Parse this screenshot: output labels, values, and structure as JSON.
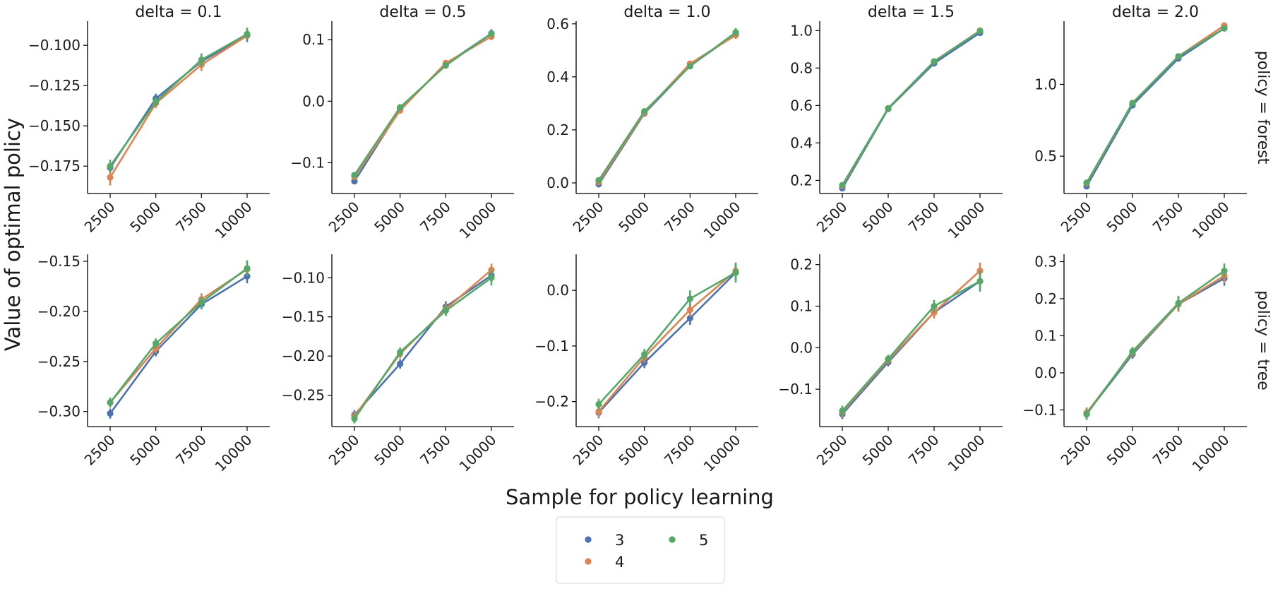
{
  "chart_data": {
    "type": "line",
    "figure": "facet grid of point plots with error bars",
    "xlabel": "Sample for policy learning",
    "ylabel": "Value of optimal policy",
    "x": [
      2500,
      5000,
      7500,
      10000
    ],
    "x_tick_labels": [
      "2500",
      "5000",
      "7500",
      "10000"
    ],
    "col_titles": [
      "delta = 0.1",
      "delta = 0.5",
      "delta = 1.0",
      "delta = 1.5",
      "delta = 2.0"
    ],
    "row_titles": [
      "policy = forest",
      "policy = tree"
    ],
    "legend": {
      "placement": "bottom-center",
      "columns": 2,
      "entries": [
        {
          "label": "3",
          "color": "#4c72b0"
        },
        {
          "label": "4",
          "color": "#dd8452"
        },
        {
          "label": "5",
          "color": "#55a868"
        }
      ]
    },
    "panels": [
      {
        "row": 0,
        "col": 0,
        "ylim": [
          -0.192,
          -0.085
        ],
        "yticks": [
          -0.175,
          -0.15,
          -0.125,
          -0.1
        ],
        "ytick_labels": [
          "−0.175",
          "−0.150",
          "−0.125",
          "−0.100"
        ],
        "series": [
          {
            "name": "3",
            "values": [
              -0.176,
              -0.133,
              -0.11,
              -0.094
            ],
            "err": [
              0.003,
              0.003,
              0.003,
              0.004
            ]
          },
          {
            "name": "4",
            "values": [
              -0.182,
              -0.136,
              -0.112,
              -0.094
            ],
            "err": [
              0.005,
              0.003,
              0.004,
              0.003
            ]
          },
          {
            "name": "5",
            "values": [
              -0.175,
              -0.135,
              -0.109,
              -0.093
            ],
            "err": [
              0.004,
              0.003,
              0.004,
              0.004
            ]
          }
        ]
      },
      {
        "row": 0,
        "col": 1,
        "ylim": [
          -0.15,
          0.13
        ],
        "yticks": [
          -0.1,
          0.0,
          0.1
        ],
        "ytick_labels": [
          "−0.1",
          "0.0",
          "0.1"
        ],
        "series": [
          {
            "name": "3",
            "values": [
              -0.13,
              -0.013,
              0.06,
              0.11
            ],
            "err": [
              0.005,
              0.004,
              0.005,
              0.007
            ]
          },
          {
            "name": "4",
            "values": [
              -0.123,
              -0.015,
              0.062,
              0.105
            ],
            "err": [
              0.005,
              0.004,
              0.005,
              0.006
            ]
          },
          {
            "name": "5",
            "values": [
              -0.12,
              -0.01,
              0.058,
              0.11
            ],
            "err": [
              0.005,
              0.004,
              0.005,
              0.006
            ]
          }
        ]
      },
      {
        "row": 0,
        "col": 2,
        "ylim": [
          -0.04,
          0.61
        ],
        "yticks": [
          0.0,
          0.2,
          0.4,
          0.6
        ],
        "ytick_labels": [
          "0.0",
          "0.2",
          "0.4",
          "0.6"
        ],
        "series": [
          {
            "name": "3",
            "values": [
              -0.005,
              0.262,
              0.442,
              0.562
            ],
            "err": [
              0.012,
              0.01,
              0.01,
              0.015
            ]
          },
          {
            "name": "4",
            "values": [
              0.003,
              0.265,
              0.45,
              0.557
            ],
            "err": [
              0.012,
              0.01,
              0.01,
              0.014
            ]
          },
          {
            "name": "5",
            "values": [
              0.01,
              0.27,
              0.44,
              0.568
            ],
            "err": [
              0.012,
              0.01,
              0.01,
              0.016
            ]
          }
        ]
      },
      {
        "row": 0,
        "col": 3,
        "ylim": [
          0.13,
          1.05
        ],
        "yticks": [
          0.2,
          0.4,
          0.6,
          0.8,
          1.0
        ],
        "ytick_labels": [
          "0.2",
          "0.4",
          "0.6",
          "0.8",
          "1.0"
        ],
        "series": [
          {
            "name": "3",
            "values": [
              0.158,
              0.582,
              0.825,
              0.988
            ],
            "err": [
              0.01,
              0.008,
              0.01,
              0.008
            ]
          },
          {
            "name": "4",
            "values": [
              0.17,
              0.585,
              0.835,
              1.0
            ],
            "err": [
              0.01,
              0.008,
              0.01,
              0.008
            ]
          },
          {
            "name": "5",
            "values": [
              0.175,
              0.585,
              0.835,
              0.998
            ],
            "err": [
              0.01,
              0.008,
              0.01,
              0.008
            ]
          }
        ]
      },
      {
        "row": 0,
        "col": 4,
        "ylim": [
          0.24,
          1.44
        ],
        "yticks": [
          0.5,
          1.0
        ],
        "ytick_labels": [
          "0.5",
          "1.0"
        ],
        "series": [
          {
            "name": "3",
            "values": [
              0.29,
              0.855,
              1.18,
              1.39
            ],
            "err": [
              0.012,
              0.012,
              0.012,
              0.01
            ]
          },
          {
            "name": "4",
            "values": [
              0.31,
              0.87,
              1.195,
              1.41
            ],
            "err": [
              0.012,
              0.012,
              0.012,
              0.01
            ]
          },
          {
            "name": "5",
            "values": [
              0.315,
              0.87,
              1.195,
              1.39
            ],
            "err": [
              0.012,
              0.012,
              0.012,
              0.01
            ]
          }
        ]
      },
      {
        "row": 1,
        "col": 0,
        "ylim": [
          -0.315,
          -0.143
        ],
        "yticks": [
          -0.3,
          -0.25,
          -0.2,
          -0.15
        ],
        "ytick_labels": [
          "−0.30",
          "−0.25",
          "−0.20",
          "−0.15"
        ],
        "series": [
          {
            "name": "3",
            "values": [
              -0.302,
              -0.24,
              -0.193,
              -0.165
            ],
            "err": [
              0.005,
              0.005,
              0.005,
              0.007
            ]
          },
          {
            "name": "4",
            "values": [
              -0.291,
              -0.237,
              -0.188,
              -0.158
            ],
            "err": [
              0.005,
              0.005,
              0.006,
              0.007
            ]
          },
          {
            "name": "5",
            "values": [
              -0.291,
              -0.232,
              -0.191,
              -0.157
            ],
            "err": [
              0.005,
              0.005,
              0.006,
              0.008
            ]
          }
        ]
      },
      {
        "row": 1,
        "col": 1,
        "ylim": [
          -0.29,
          -0.07
        ],
        "yticks": [
          -0.25,
          -0.2,
          -0.15,
          -0.1
        ],
        "ytick_labels": [
          "−0.25",
          "−0.20",
          "−0.15",
          "−0.10"
        ],
        "series": [
          {
            "name": "3",
            "values": [
              -0.275,
              -0.21,
              -0.137,
              -0.097
            ],
            "err": [
              0.006,
              0.006,
              0.007,
              0.008
            ]
          },
          {
            "name": "4",
            "values": [
              -0.277,
              -0.197,
              -0.14,
              -0.09
            ],
            "err": [
              0.006,
              0.006,
              0.007,
              0.008
            ]
          },
          {
            "name": "5",
            "values": [
              -0.28,
              -0.195,
              -0.142,
              -0.1
            ],
            "err": [
              0.006,
              0.006,
              0.007,
              0.01
            ]
          }
        ]
      },
      {
        "row": 1,
        "col": 2,
        "ylim": [
          -0.245,
          0.065
        ],
        "yticks": [
          -0.2,
          -0.1,
          0.0
        ],
        "ytick_labels": [
          "−0.2",
          "−0.1",
          "0.0"
        ],
        "series": [
          {
            "name": "3",
            "values": [
              -0.22,
              -0.13,
              -0.05,
              0.032
            ],
            "err": [
              0.01,
              0.01,
              0.012,
              0.015
            ]
          },
          {
            "name": "4",
            "values": [
              -0.218,
              -0.12,
              -0.035,
              0.035
            ],
            "err": [
              0.01,
              0.01,
              0.012,
              0.015
            ]
          },
          {
            "name": "5",
            "values": [
              -0.205,
              -0.115,
              -0.015,
              0.032
            ],
            "err": [
              0.01,
              0.01,
              0.015,
              0.018
            ]
          }
        ]
      },
      {
        "row": 1,
        "col": 3,
        "ylim": [
          -0.19,
          0.225
        ],
        "yticks": [
          -0.1,
          0.0,
          0.1,
          0.2
        ],
        "ytick_labels": [
          "−0.1",
          "0.0",
          "0.1",
          "0.2"
        ],
        "series": [
          {
            "name": "3",
            "values": [
              -0.16,
              -0.035,
              0.085,
              0.16
            ],
            "err": [
              0.012,
              0.01,
              0.012,
              0.02
            ]
          },
          {
            "name": "4",
            "values": [
              -0.155,
              -0.03,
              0.085,
              0.185
            ],
            "err": [
              0.012,
              0.01,
              0.015,
              0.02
            ]
          },
          {
            "name": "5",
            "values": [
              -0.152,
              -0.027,
              0.1,
              0.16
            ],
            "err": [
              0.012,
              0.01,
              0.015,
              0.025
            ]
          }
        ]
      },
      {
        "row": 1,
        "col": 4,
        "ylim": [
          -0.145,
          0.32
        ],
        "yticks": [
          -0.1,
          0.0,
          0.1,
          0.2,
          0.3
        ],
        "ytick_labels": [
          "−0.1",
          "0.0",
          "0.1",
          "0.2",
          "0.3"
        ],
        "series": [
          {
            "name": "3",
            "values": [
              -0.11,
              0.05,
              0.185,
              0.255
            ],
            "err": [
              0.015,
              0.012,
              0.02,
              0.02
            ]
          },
          {
            "name": "4",
            "values": [
              -0.108,
              0.055,
              0.185,
              0.262
            ],
            "err": [
              0.015,
              0.012,
              0.02,
              0.02
            ]
          },
          {
            "name": "5",
            "values": [
              -0.112,
              0.058,
              0.188,
              0.275
            ],
            "err": [
              0.015,
              0.012,
              0.02,
              0.02
            ]
          }
        ]
      }
    ]
  }
}
